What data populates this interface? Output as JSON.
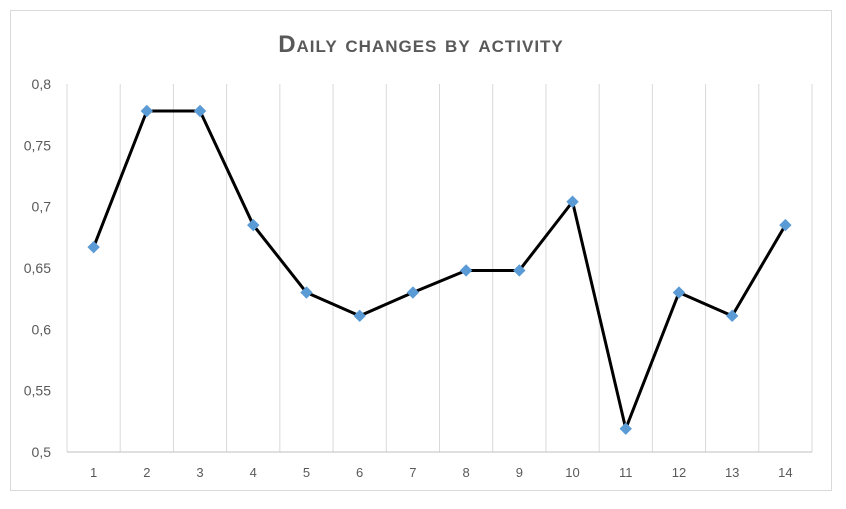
{
  "chart_data": {
    "type": "line",
    "title": "Daily changes by activity",
    "xlabel": "",
    "ylabel": "",
    "categories": [
      "1",
      "2",
      "3",
      "4",
      "5",
      "6",
      "7",
      "8",
      "9",
      "10",
      "11",
      "12",
      "13",
      "14"
    ],
    "series": [
      {
        "values": [
          0.667,
          0.778,
          0.778,
          0.685,
          0.63,
          0.611,
          0.63,
          0.648,
          0.648,
          0.704,
          0.519,
          0.63,
          0.611,
          0.685
        ]
      }
    ],
    "ylim": [
      0.5,
      0.8
    ],
    "yticks": [
      0.5,
      0.55,
      0.6,
      0.65,
      0.7,
      0.75,
      0.8
    ],
    "ytick_labels": [
      "0,5",
      "0,55",
      "0,6",
      "0,65",
      "0,7",
      "0,75",
      "0,8"
    ],
    "grid": "vertical",
    "legend": "none",
    "colors": {
      "line": "#000000",
      "marker": "#5b9bd5",
      "grid": "#d9d9d9",
      "text": "#595959"
    },
    "marker_shape": "diamond"
  }
}
